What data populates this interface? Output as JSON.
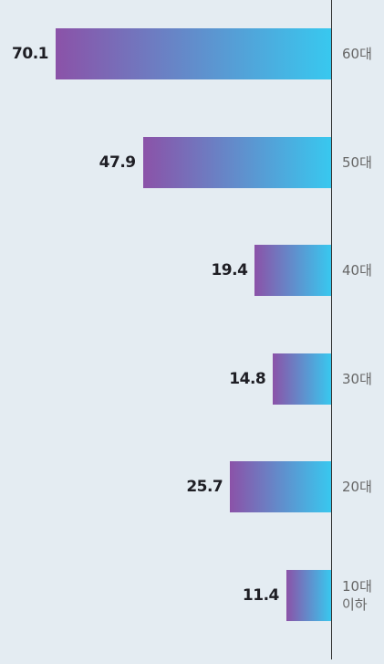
{
  "chart_data": {
    "type": "bar",
    "orientation": "horizontal",
    "categories": [
      "60대",
      "50대",
      "40대",
      "30대",
      "20대",
      "10대 이하"
    ],
    "values": [
      70.1,
      47.9,
      19.4,
      14.8,
      25.7,
      11.4
    ],
    "gradient": [
      "#8b52a8",
      "#38c8ef"
    ]
  }
}
